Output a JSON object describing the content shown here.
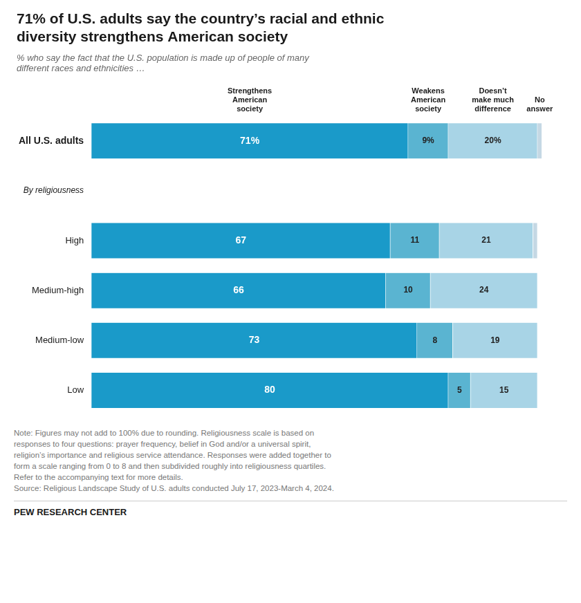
{
  "chart_data": {
    "type": "bar",
    "orientation": "horizontal",
    "stacked": true,
    "title": "71% of U.S. adults say the country’s racial and ethnic\ndiversity strengthens American society",
    "subtitle": "% who say the fact that the U.S. population is made up of people of many\ndifferent races and ethnicities …",
    "section_label": "By religiousness",
    "categories": [
      "All U.S. adults",
      "High",
      "Medium-high",
      "Medium-low",
      "Low"
    ],
    "series": [
      {
        "name": "Strengthens\nAmerican\nsociety",
        "color": "#1a9ac9",
        "values": [
          71,
          67,
          66,
          73,
          80
        ],
        "value_labels": [
          "71%",
          "67",
          "66",
          "73",
          "80"
        ]
      },
      {
        "name": "Weakens\nAmerican\nsociety",
        "color": "#5ab4d1",
        "values": [
          9,
          11,
          10,
          8,
          5
        ],
        "value_labels": [
          "9%",
          "11",
          "10",
          "8",
          "5"
        ]
      },
      {
        "name": "Doesn’t\nmake much\ndifference",
        "color": "#a8d4e6",
        "values": [
          20,
          21,
          24,
          19,
          15
        ],
        "value_labels": [
          "20%",
          "21",
          "24",
          "19",
          "15"
        ]
      },
      {
        "name": "No\nanswer",
        "color": "#c5d8e4",
        "values": [
          1,
          1,
          0,
          0,
          0
        ],
        "value_labels": [
          null,
          null,
          null,
          null,
          null
        ]
      }
    ],
    "xlim": [
      0,
      102
    ],
    "data_labels": true,
    "tick_labels": "y",
    "grid": false,
    "notes": [
      "Note: Figures may not add to 100% due to rounding. Religiousness scale is based on",
      "responses to four questions: prayer frequency, belief in God and/or a universal spirit,",
      "religion’s importance and religious service attendance. Responses were added together to",
      "form a scale ranging from 0 to 8 and then subdivided roughly into religiousness quartiles.",
      "Refer to the accompanying text for more details.",
      "Source: Religious Landscape Study of U.S. adults conducted July 17, 2023-March 4, 2024."
    ],
    "footer": "PEW RESEARCH CENTER"
  }
}
